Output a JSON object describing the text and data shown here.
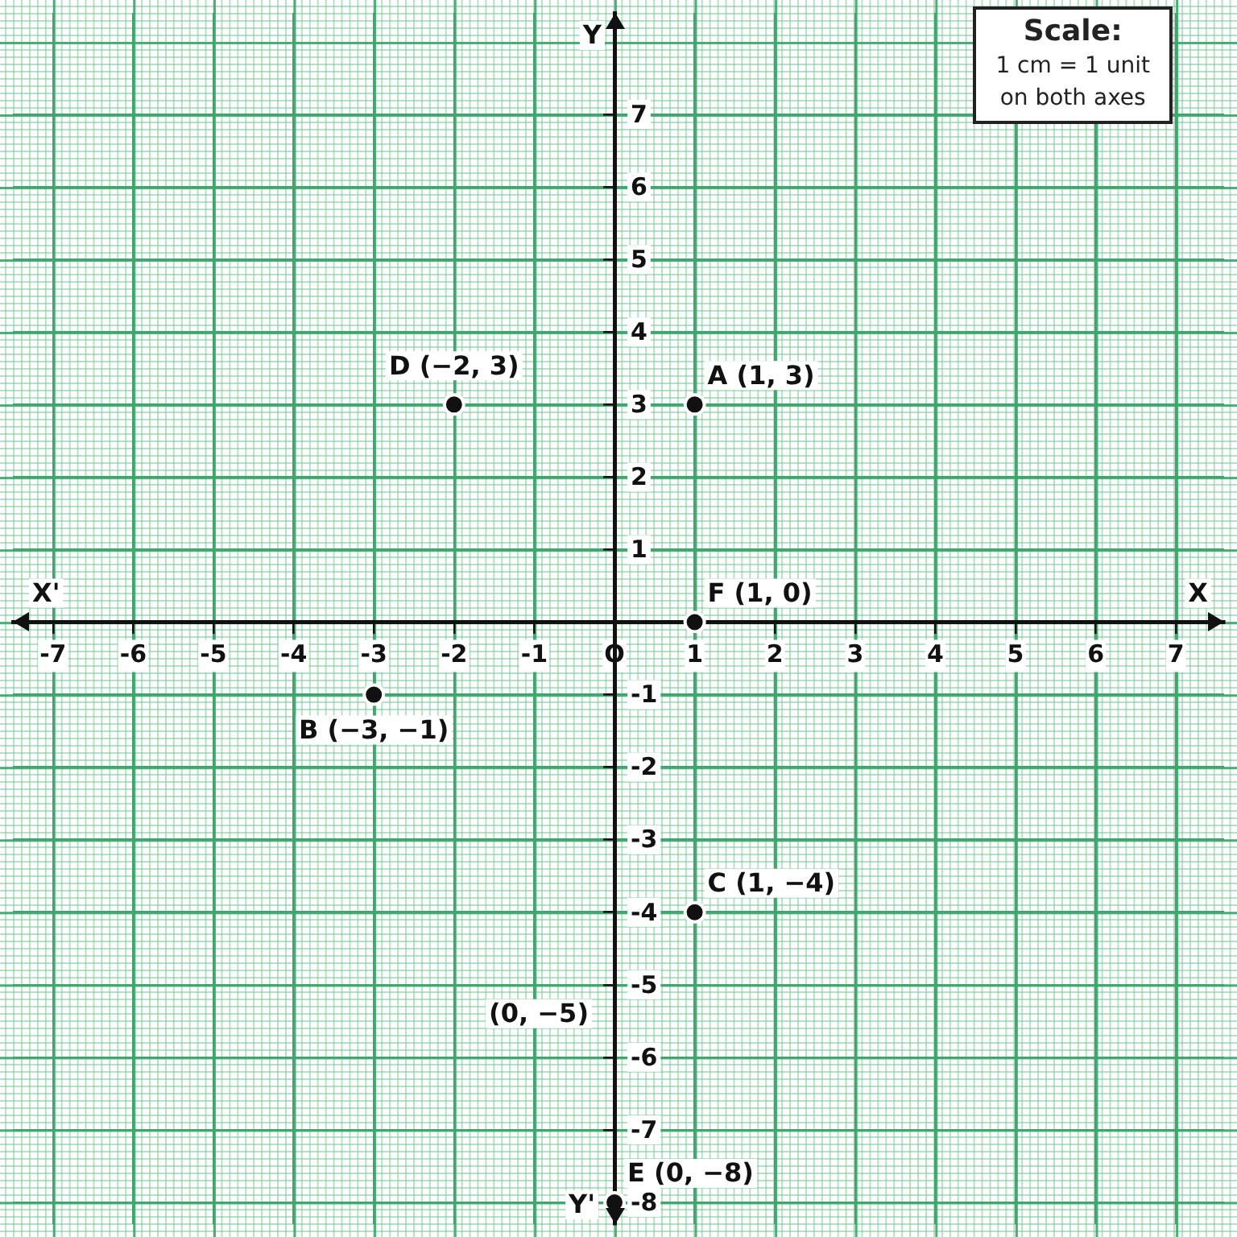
{
  "chart_data": {
    "type": "scatter",
    "xlabel": "X",
    "ylabel": "Y",
    "xlim": [
      -7.5,
      7.6
    ],
    "ylim": [
      -8.3,
      8.4
    ],
    "xticks": [
      -7,
      -6,
      -5,
      -4,
      -3,
      -2,
      -1,
      {
        "value": 0,
        "label": "O"
      },
      1,
      2,
      3,
      4,
      5,
      6,
      7
    ],
    "yticks": [
      -8,
      -7,
      -6,
      -5,
      -4,
      -3,
      -2,
      -1,
      {
        "value": 0,
        "label": null
      },
      1,
      2,
      3,
      4,
      5,
      6,
      7
    ],
    "grid": true,
    "marker": "circle",
    "series": [
      {
        "color": "#111111",
        "x": [
          1,
          -3,
          1,
          -2,
          0,
          1
        ],
        "values": [
          3,
          -1,
          -4,
          3,
          -8,
          0
        ],
        "value_labels": [
          "A (1, 3)",
          "B (−3, −1)",
          "C (1, −4)",
          "D (−2, 3)",
          "E (0, −8)",
          "F (1, 0)"
        ]
      }
    ],
    "annotations": [
      "X'",
      "Y'",
      "(0, −5)",
      "Scale:\n1 cm = 1 unit\non both axes"
    ]
  }
}
